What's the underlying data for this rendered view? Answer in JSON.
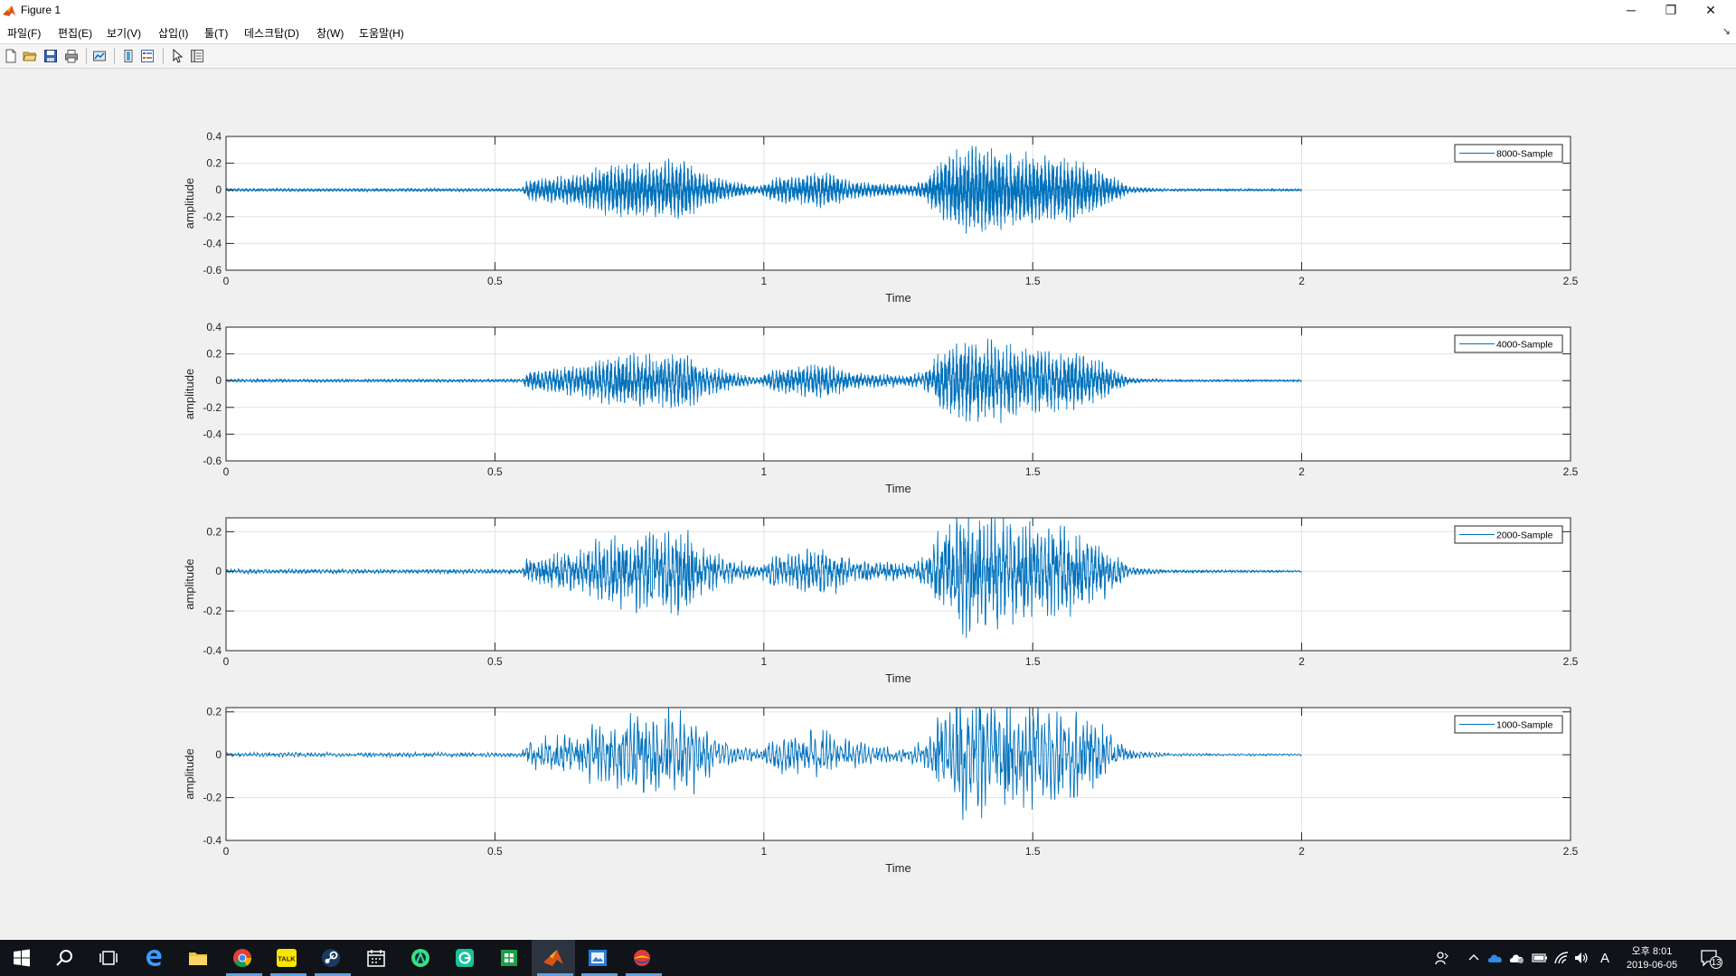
{
  "window": {
    "title": "Figure 1",
    "controls": {
      "minimize": "─",
      "restore": "❐",
      "close": "✕"
    }
  },
  "menu": {
    "items": [
      "파일(F)",
      "편집(E)",
      "보기(V)",
      "삽입(I)",
      "툴(T)",
      "데스크탑(D)",
      "창(W)",
      "도움말(H)"
    ],
    "corner": "↘"
  },
  "toolbar": {
    "icons": [
      "new-figure-icon",
      "open-file-icon",
      "save-icon",
      "print-icon",
      "link-plot-icon",
      "insert-colorbar-icon",
      "insert-legend-icon",
      "edit-plot-arrow-icon",
      "property-inspector-icon"
    ]
  },
  "style": {
    "line_color": "#0072bd",
    "grid_color": "#e3e3e3",
    "figure_bg": "#f0f0f0"
  },
  "chart_data": [
    {
      "type": "line",
      "xlabel": "Time",
      "ylabel": "amplitude",
      "xlim": [
        0,
        2.5
      ],
      "ylim": [
        -0.6,
        0.4
      ],
      "xticks": [
        0,
        0.5,
        1,
        1.5,
        2,
        2.5
      ],
      "xtick_labels": [
        "0",
        "0.5",
        "1",
        "1.5",
        "2",
        "2.5"
      ],
      "yticks": [
        -0.6,
        -0.4,
        -0.2,
        0,
        0.2,
        0.4
      ],
      "ytick_labels": [
        "-0.6",
        "-0.4",
        "-0.2",
        "0",
        "0.2",
        "0.4"
      ],
      "grid": true,
      "legend": "top-right",
      "series": [
        {
          "name": "8000-Sample",
          "color": "#0072bd",
          "sample_rate": 8000,
          "duration": 2.0
        }
      ]
    },
    {
      "type": "line",
      "xlabel": "Time",
      "ylabel": "amplitude",
      "xlim": [
        0,
        2.5
      ],
      "ylim": [
        -0.6,
        0.4
      ],
      "xticks": [
        0,
        0.5,
        1,
        1.5,
        2,
        2.5
      ],
      "xtick_labels": [
        "0",
        "0.5",
        "1",
        "1.5",
        "2",
        "2.5"
      ],
      "yticks": [
        -0.6,
        -0.4,
        -0.2,
        0,
        0.2,
        0.4
      ],
      "ytick_labels": [
        "-0.6",
        "-0.4",
        "-0.2",
        "0",
        "0.2",
        "0.4"
      ],
      "grid": true,
      "legend": "top-right",
      "series": [
        {
          "name": "4000-Sample",
          "color": "#0072bd",
          "sample_rate": 4000,
          "duration": 2.0
        }
      ]
    },
    {
      "type": "line",
      "xlabel": "Time",
      "ylabel": "amplitude",
      "xlim": [
        0,
        2.5
      ],
      "ylim": [
        -0.4,
        0.27
      ],
      "xticks": [
        0,
        0.5,
        1,
        1.5,
        2,
        2.5
      ],
      "xtick_labels": [
        "0",
        "0.5",
        "1",
        "1.5",
        "2",
        "2.5"
      ],
      "yticks": [
        -0.4,
        -0.2,
        0,
        0.2
      ],
      "ytick_labels": [
        "-0.4",
        "-0.2",
        "0",
        "0.2"
      ],
      "grid": true,
      "legend": "top-right",
      "series": [
        {
          "name": "2000-Sample",
          "color": "#0072bd",
          "sample_rate": 2000,
          "duration": 2.0
        }
      ]
    },
    {
      "type": "line",
      "xlabel": "Time",
      "ylabel": "amplitude",
      "xlim": [
        0,
        2.5
      ],
      "ylim": [
        -0.4,
        0.22
      ],
      "xticks": [
        0,
        0.5,
        1,
        1.5,
        2,
        2.5
      ],
      "xtick_labels": [
        "0",
        "0.5",
        "1",
        "1.5",
        "2",
        "2.5"
      ],
      "yticks": [
        -0.4,
        -0.2,
        0,
        0.2
      ],
      "ytick_labels": [
        "-0.4",
        "-0.2",
        "0",
        "0.2"
      ],
      "grid": true,
      "legend": "top-right",
      "series": [
        {
          "name": "1000-Sample",
          "color": "#0072bd",
          "sample_rate": 1000,
          "duration": 2.0
        }
      ]
    }
  ],
  "taskbar": {
    "apps": [
      "windows-start-icon",
      "search-icon",
      "task-view-icon",
      "edge-browser-icon",
      "file-explorer-icon",
      "chrome-icon",
      "kakaotalk-icon",
      "steam-icon",
      "calendar-icon",
      "android-studio-icon",
      "grammarly-icon",
      "spreadsheet-icon",
      "matlab-icon",
      "image-viewer-icon",
      "media-player-icon"
    ],
    "tray": {
      "icons": [
        "people-icon",
        "chevron-up-icon",
        "onedrive-icon",
        "cloud-icon",
        "battery-icon",
        "wifi-icon",
        "volume-icon"
      ],
      "ime": "A",
      "time": "오후 8:01",
      "date": "2019-06-05",
      "notifications": "13"
    }
  }
}
